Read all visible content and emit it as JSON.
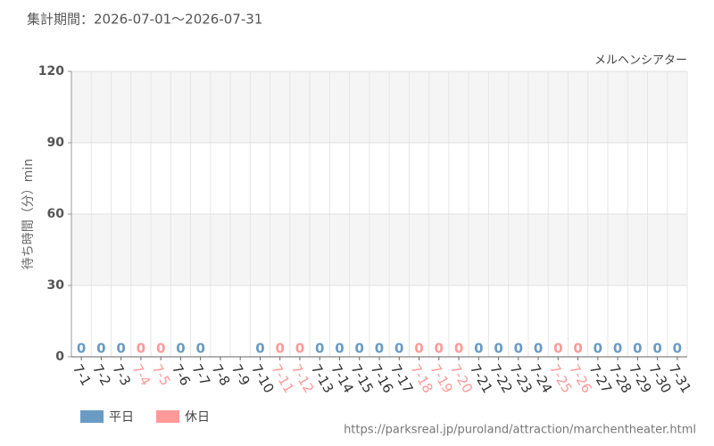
{
  "chart_data": {
    "type": "bar",
    "title": "集計期間：2026-07-01～2026-07-31",
    "subtitle": "メルヘンシアター",
    "y_label": "待ち時間（分）min",
    "source": "https://parksreal.jp/puroland/attraction/marchentheater.html",
    "categories": [
      "7-1",
      "7-2",
      "7-3",
      "7-4",
      "7-5",
      "7-6",
      "7-7",
      "7-8",
      "7-9",
      "7-10",
      "7-11",
      "7-12",
      "7-13",
      "7-14",
      "7-15",
      "7-16",
      "7-17",
      "7-18",
      "7-19",
      "7-20",
      "7-21",
      "7-22",
      "7-23",
      "7-24",
      "7-25",
      "7-26",
      "7-27",
      "7-28",
      "7-29",
      "7-30",
      "7-31"
    ],
    "series": [
      {
        "name": "平日",
        "color": "#6a9bc3",
        "values": [
          0,
          0,
          0,
          null,
          null,
          0,
          0,
          null,
          null,
          0,
          null,
          null,
          0,
          0,
          0,
          0,
          0,
          null,
          null,
          null,
          0,
          0,
          0,
          0,
          null,
          null,
          0,
          0,
          0,
          0,
          0
        ]
      },
      {
        "name": "休日",
        "color": "#ff9999",
        "values": [
          null,
          null,
          null,
          0,
          0,
          null,
          null,
          null,
          null,
          null,
          0,
          0,
          null,
          null,
          null,
          null,
          null,
          0,
          0,
          0,
          null,
          null,
          null,
          null,
          0,
          0,
          null,
          null,
          null,
          null,
          null
        ]
      }
    ],
    "ylim": [
      0,
      120
    ],
    "yticks": [
      0,
      30,
      60,
      90,
      120
    ],
    "grid": true
  }
}
